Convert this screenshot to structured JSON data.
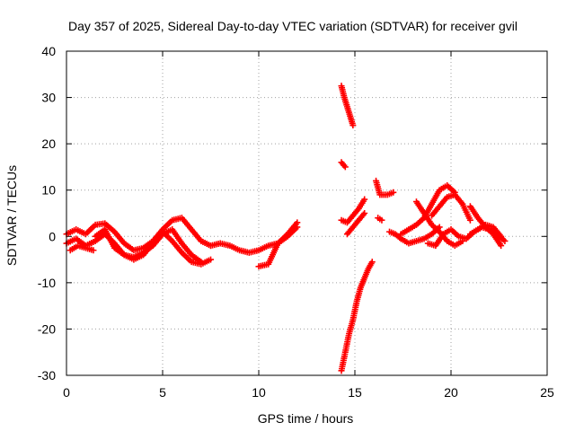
{
  "chart_data": {
    "type": "scatter",
    "title": "Day 357 of 2025, Sidereal Day-to-day VTEC variation (SDTVAR) for receiver gvil",
    "xlabel": "GPS time / hours",
    "ylabel": "SDTVAR / TECUs",
    "xlim": [
      0,
      25
    ],
    "ylim": [
      -30,
      40
    ],
    "xticks": [
      0,
      5,
      10,
      15,
      20,
      25
    ],
    "yticks": [
      -30,
      -20,
      -10,
      0,
      10,
      20,
      30,
      40
    ],
    "xtick_labels": [
      "0",
      "5",
      "10",
      "15",
      "20",
      "25"
    ],
    "ytick_labels": [
      "-30",
      "-20",
      "-10",
      "0",
      "10",
      "20",
      "30",
      "40"
    ],
    "grid": true,
    "marker": "+",
    "color": "#ff0000",
    "series": [
      {
        "name": "track-a",
        "x": [
          0,
          0.5,
          1,
          1.5,
          2,
          2.5,
          3,
          3.5,
          4,
          4.5,
          5,
          5.5,
          6,
          6.5,
          7,
          7.5
        ],
        "y": [
          0.5,
          1.5,
          0.5,
          2.5,
          2.8,
          1.0,
          -1.5,
          -3.0,
          -2.5,
          -1.0,
          1.5,
          3.5,
          4.0,
          1.5,
          -1.0,
          -2.0
        ]
      },
      {
        "name": "track-b",
        "x": [
          0,
          0.5,
          1,
          1.5,
          2,
          2.5,
          3,
          3.5,
          4,
          4.5,
          5,
          5.5,
          6,
          6.5,
          7
        ],
        "y": [
          -1.5,
          -0.5,
          -2.0,
          -1.0,
          0.5,
          -1.5,
          -4.0,
          -4.5,
          -3.5,
          -2.0,
          0.5,
          1.5,
          -1.5,
          -4.0,
          -5.5
        ]
      },
      {
        "name": "track-c",
        "x": [
          1.5,
          2,
          2.5,
          3,
          3.5,
          4,
          4.5,
          5,
          5.5,
          6,
          6.5,
          7,
          7.5
        ],
        "y": [
          0.0,
          1.5,
          -2.5,
          -4.0,
          -5.0,
          -4.0,
          -1.5,
          1.0,
          -1.0,
          -3.5,
          -5.5,
          -6.0,
          -5.0
        ]
      },
      {
        "name": "track-d",
        "x": [
          0.2,
          0.6,
          1.0,
          1.4
        ],
        "y": [
          -3.0,
          -2.0,
          -2.5,
          -3.0
        ]
      },
      {
        "name": "track-e",
        "x": [
          7.5,
          8,
          8.5,
          9,
          9.5,
          10,
          10.5,
          11,
          11.5,
          12
        ],
        "y": [
          -2.0,
          -1.5,
          -2.0,
          -3.0,
          -3.5,
          -3.0,
          -2.0,
          -1.5,
          0.0,
          2.0
        ]
      },
      {
        "name": "track-f",
        "x": [
          10,
          10.5,
          11,
          11.5,
          12
        ],
        "y": [
          -6.5,
          -6.0,
          -1.5,
          0.5,
          3.0
        ]
      },
      {
        "name": "track-g",
        "x": [
          14.3,
          14.45,
          14.6,
          14.75,
          14.9
        ],
        "y": [
          32.5,
          30.0,
          28.0,
          26.0,
          24.0
        ]
      },
      {
        "name": "track-h",
        "x": [
          14.3,
          14.5
        ],
        "y": [
          16.0,
          15.0
        ]
      },
      {
        "name": "track-i",
        "x": [
          14.3,
          14.5,
          14.7,
          14.9,
          15.1,
          15.3,
          15.5,
          15.7,
          15.9
        ],
        "y": [
          -29.0,
          -25.0,
          -21.0,
          -18.0,
          -14.0,
          -11.0,
          -9.0,
          -7.0,
          -5.5
        ]
      },
      {
        "name": "track-j",
        "x": [
          14.3,
          14.6,
          14.9,
          15.2,
          15.5
        ],
        "y": [
          3.5,
          3.0,
          4.5,
          6.0,
          8.0
        ]
      },
      {
        "name": "track-k",
        "x": [
          14.6,
          14.9,
          15.2,
          15.5
        ],
        "y": [
          0.5,
          2.0,
          3.5,
          5.0
        ]
      },
      {
        "name": "track-l",
        "x": [
          16.1,
          16.3,
          16.7,
          17.0
        ],
        "y": [
          12.0,
          9.0,
          9.0,
          9.5
        ]
      },
      {
        "name": "track-m",
        "x": [
          16.2,
          16.4
        ],
        "y": [
          4.0,
          3.5
        ]
      },
      {
        "name": "track-n",
        "x": [
          16.8,
          17.1,
          17.4
        ],
        "y": [
          1.0,
          0.5,
          -0.5
        ]
      },
      {
        "name": "track-o",
        "x": [
          17.4,
          17.8,
          18.2,
          18.6,
          19,
          19.4,
          19.8,
          20.2
        ],
        "y": [
          0.5,
          1.5,
          2.5,
          4.0,
          7.0,
          10.0,
          11.0,
          9.5
        ]
      },
      {
        "name": "track-p",
        "x": [
          17.4,
          17.8,
          18.2,
          18.6,
          19,
          19.4
        ],
        "y": [
          -0.5,
          -1.5,
          -1.0,
          -0.5,
          0.5,
          2.0
        ]
      },
      {
        "name": "track-q",
        "x": [
          18.2,
          18.6,
          19,
          19.4,
          19.8,
          20.2,
          20.6
        ],
        "y": [
          7.5,
          5.0,
          2.5,
          1.0,
          -1.0,
          -2.0,
          -1.0
        ]
      },
      {
        "name": "track-r",
        "x": [
          18.8,
          19.2,
          19.6,
          20.0,
          20.4,
          20.8,
          21.2,
          21.6,
          22.0,
          22.4,
          22.8
        ],
        "y": [
          -1.5,
          -2.0,
          0.5,
          1.5,
          0.0,
          -0.5,
          1.0,
          2.0,
          1.5,
          0.5,
          -1.0
        ]
      },
      {
        "name": "track-s",
        "x": [
          19.0,
          19.4,
          19.8,
          20.2,
          20.6,
          21.0
        ],
        "y": [
          4.5,
          6.5,
          8.5,
          9.0,
          7.0,
          3.5
        ]
      },
      {
        "name": "track-t",
        "x": [
          21.0,
          21.4,
          21.8,
          22.2,
          22.6
        ],
        "y": [
          6.5,
          4.0,
          2.0,
          0.5,
          -2.0
        ]
      },
      {
        "name": "track-u",
        "x": [
          21.0,
          21.4,
          21.8,
          22.2,
          22.6
        ],
        "y": [
          0.5,
          1.5,
          2.5,
          2.0,
          0.0
        ]
      }
    ]
  }
}
